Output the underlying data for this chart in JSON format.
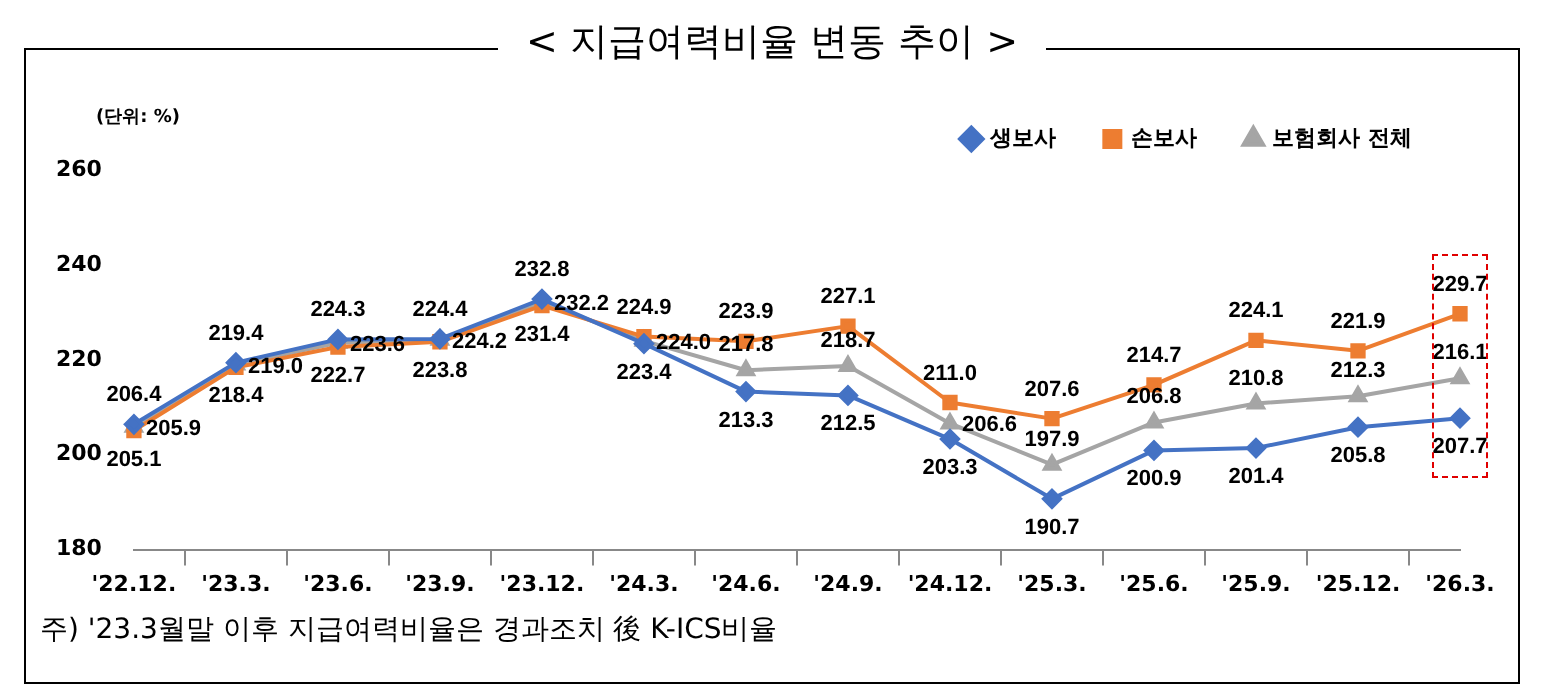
{
  "chart_data": {
    "type": "line",
    "title": "< 지급여력비율 변동 추이 >",
    "ylabel": "(단위: %)",
    "categories": [
      "'22.12.",
      "'23.3.",
      "'23.6.",
      "'23.9.",
      "'23.12.",
      "'24.3.",
      "'24.6.",
      "'24.9.",
      "'24.12.",
      "'25.3.",
      "'25.6.",
      "'25.9.",
      "'25.12.",
      "'26.3."
    ],
    "series": [
      {
        "name": "생보사",
        "color": "#4472c4",
        "marker": "diamond",
        "values": [
          206.4,
          219.4,
          224.3,
          224.4,
          232.8,
          223.4,
          213.3,
          212.5,
          203.3,
          190.7,
          200.9,
          201.4,
          205.8,
          207.7
        ],
        "value_labels": [
          "206.4",
          "219.4",
          "224.3",
          "224.4",
          "232.8",
          "223.4",
          "213.3",
          "212.5",
          "203.3",
          "190.7",
          "200.9",
          "201.4",
          "205.8",
          "207.7"
        ]
      },
      {
        "name": "손보사",
        "color": "#ed7d31",
        "marker": "square",
        "values": [
          205.1,
          218.4,
          222.7,
          223.8,
          231.4,
          224.9,
          223.9,
          227.1,
          211.0,
          207.6,
          214.7,
          224.1,
          221.9,
          229.7
        ],
        "value_labels": [
          "205.1",
          "218.4",
          "222.7",
          "223.8",
          "231.4",
          "224.9",
          "223.9",
          "227.1",
          "211.0",
          "207.6",
          "214.7",
          "224.1",
          "221.9",
          "229.7"
        ]
      },
      {
        "name": "보험회사 전체",
        "color": "#a5a5a5",
        "marker": "triangle",
        "values": [
          205.9,
          219.0,
          223.6,
          224.2,
          232.2,
          224.0,
          217.8,
          218.7,
          206.6,
          197.9,
          206.8,
          210.8,
          212.3,
          216.1
        ],
        "value_labels": [
          "205.9",
          "219.0",
          "223.6",
          "224.2",
          "232.2",
          "224.0",
          "217.8",
          "218.7",
          "206.6",
          "197.9",
          "206.8",
          "210.8",
          "212.3",
          "216.1"
        ]
      }
    ],
    "ylim": [
      180,
      260
    ],
    "yticks": [
      180,
      200,
      220,
      240,
      260
    ],
    "legend": "top right",
    "annotations": [
      "주) '23.3월말 이후 지급여력비율은 경과조치 後 K-ICS비율"
    ]
  }
}
